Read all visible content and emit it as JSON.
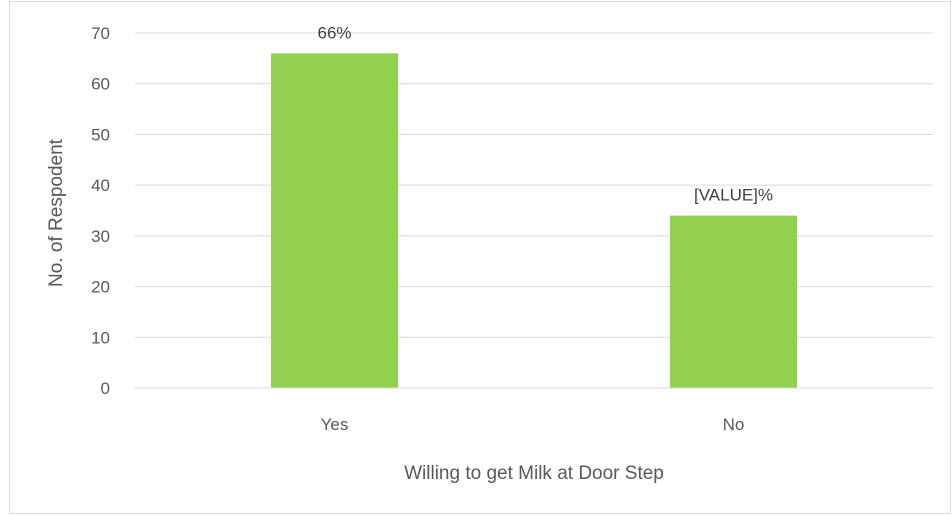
{
  "chart_data": {
    "type": "bar",
    "title": "",
    "xlabel": "Willing to get Milk at Door Step",
    "ylabel": "No. of Respodent",
    "categories": [
      "Yes",
      "No"
    ],
    "values": [
      66,
      34
    ],
    "data_labels": [
      "66%",
      "[VALUE]%"
    ],
    "ylim": [
      0,
      70
    ],
    "yticks": [
      0,
      10,
      20,
      30,
      40,
      50,
      60,
      70
    ],
    "grid": true,
    "legend": "none",
    "bar_color": "#92d050",
    "grid_color": "#d9d9d9",
    "text_color": "#595959"
  }
}
